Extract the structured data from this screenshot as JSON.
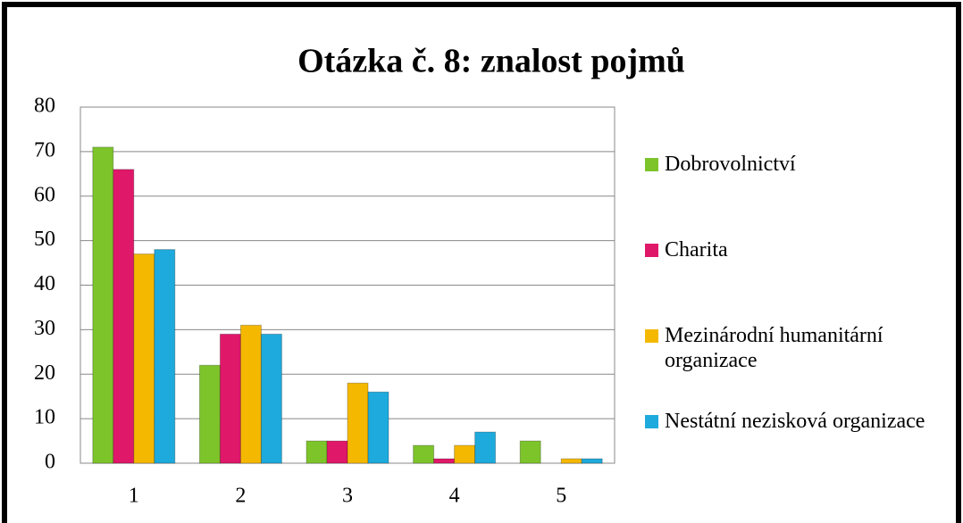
{
  "chart_data": {
    "type": "bar",
    "title": "Otázka č. 8: znalost pojmů",
    "categories": [
      "1",
      "2",
      "3",
      "4",
      "5"
    ],
    "series": [
      {
        "name": "Dobrovolnictví",
        "color": "#7dc42b",
        "values": [
          71,
          22,
          5,
          4,
          5
        ]
      },
      {
        "name": "Charita",
        "color": "#e0186a",
        "values": [
          66,
          29,
          5,
          1,
          0
        ]
      },
      {
        "name": "Mezinárodní humanitární organizace",
        "color": "#f5b800",
        "values": [
          47,
          31,
          18,
          4,
          1
        ]
      },
      {
        "name": "Nestátní nezisková organizace",
        "color": "#1eaadc",
        "values": [
          48,
          29,
          16,
          7,
          1
        ]
      }
    ],
    "ylim": [
      0,
      80
    ],
    "yticks": [
      0,
      10,
      20,
      30,
      40,
      50,
      60,
      70,
      80
    ],
    "grid": true,
    "legend": "right"
  }
}
